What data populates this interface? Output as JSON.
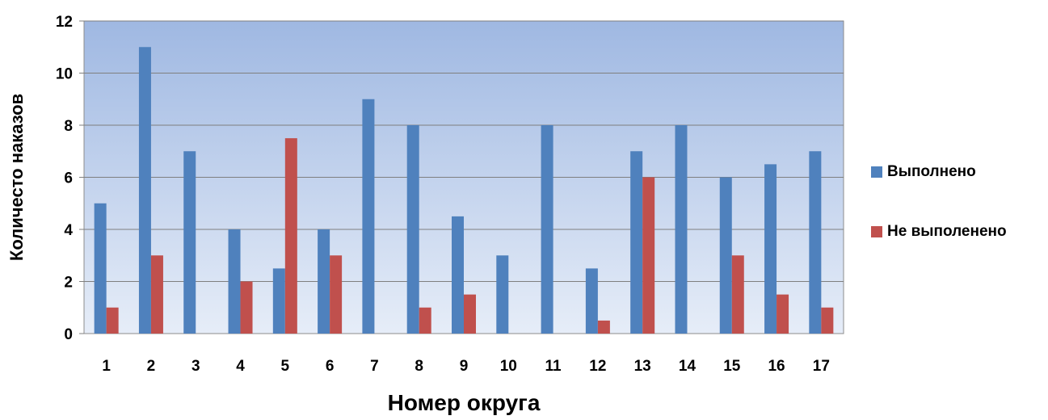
{
  "chart_data": {
    "type": "bar",
    "title": "",
    "xlabel": "Номер округа",
    "ylabel": "Количесто наказов",
    "categories": [
      "1",
      "2",
      "3",
      "4",
      "5",
      "6",
      "7",
      "8",
      "9",
      "10",
      "11",
      "12",
      "13",
      "14",
      "15",
      "16",
      "17"
    ],
    "series": [
      {
        "name": "Выполнено",
        "color": "#4f81bd",
        "values": [
          5,
          11,
          7,
          4,
          2.5,
          4,
          9,
          8,
          4.5,
          3,
          8,
          2.5,
          7,
          8,
          6,
          6.5,
          7
        ]
      },
      {
        "name": "Не выполенено",
        "color": "#c0504d",
        "values": [
          1,
          3,
          0,
          2,
          7.5,
          3,
          0,
          1,
          1.5,
          0,
          0,
          0.5,
          6,
          0,
          3,
          1.5,
          1
        ]
      }
    ],
    "ylim": [
      0,
      12
    ],
    "yticks": [
      "0",
      "2",
      "4",
      "6",
      "8",
      "10",
      "12"
    ],
    "grid": true,
    "legend_position": "right",
    "plot_background": "gradient blue"
  }
}
